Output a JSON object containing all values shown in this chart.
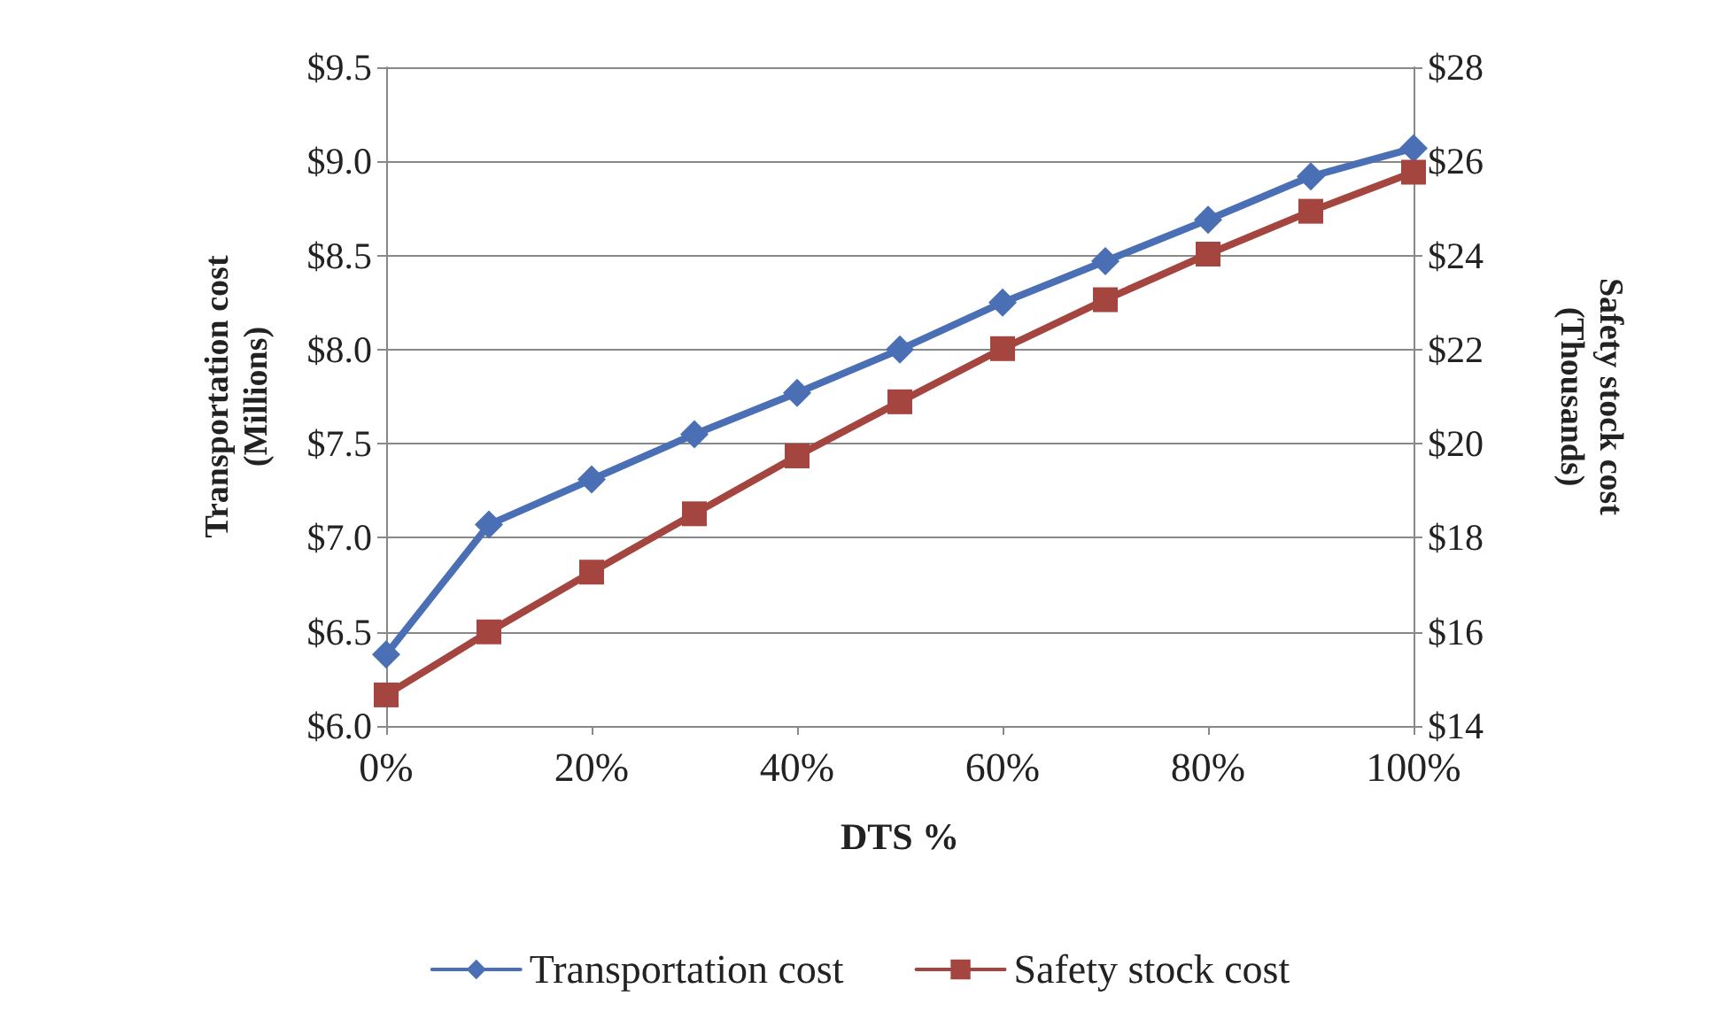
{
  "chart_data": {
    "type": "line",
    "xlabel": "DTS %",
    "ylabel": "Transportation cost\n(Millions)",
    "y2label": "Safety stock cost\n(Thousands)",
    "x": [
      0,
      10,
      20,
      30,
      40,
      50,
      60,
      70,
      80,
      90,
      100
    ],
    "series": [
      {
        "name": "Transportation cost",
        "color": "#4a6fb5",
        "marker": "diamond",
        "values": [
          6.38,
          7.07,
          7.31,
          7.55,
          7.77,
          8.0,
          8.25,
          8.47,
          8.69,
          8.92,
          9.07
        ]
      },
      {
        "name": "Safety stock cost",
        "color": "#a5453f",
        "marker": "square",
        "axis": "y2",
        "values": [
          14.66,
          16.0,
          17.27,
          18.51,
          19.74,
          20.89,
          22.02,
          23.06,
          24.03,
          24.94,
          25.77
        ]
      }
    ],
    "xlim": [
      0,
      100
    ],
    "xticks": [
      {
        "value": 0,
        "label": "0%"
      },
      {
        "value": 20,
        "label": "20%"
      },
      {
        "value": 40,
        "label": "40%"
      },
      {
        "value": 60,
        "label": "60%"
      },
      {
        "value": 80,
        "label": "80%"
      },
      {
        "value": 100,
        "label": "100%"
      }
    ],
    "ylim": [
      6,
      9.5
    ],
    "yticks": [
      {
        "value": 6,
        "label": "$6.0"
      },
      {
        "value": 6.5,
        "label": "$6.5"
      },
      {
        "value": 7,
        "label": "$7.0"
      },
      {
        "value": 7.5,
        "label": "$7.5"
      },
      {
        "value": 8,
        "label": "$8.0"
      },
      {
        "value": 8.5,
        "label": "$8.5"
      },
      {
        "value": 9,
        "label": "$9.0"
      },
      {
        "value": 9.5,
        "label": "$9.5"
      }
    ],
    "y2lim": [
      14,
      28
    ],
    "y2ticks": [
      {
        "value": 14,
        "label": "$14"
      },
      {
        "value": 16,
        "label": "$16"
      },
      {
        "value": 18,
        "label": "$18"
      },
      {
        "value": 20,
        "label": "$20"
      },
      {
        "value": 22,
        "label": "$22"
      },
      {
        "value": 24,
        "label": "$24"
      },
      {
        "value": 26,
        "label": "$26"
      },
      {
        "value": 28,
        "label": "$28"
      }
    ],
    "grid": "y",
    "legend": "bottom",
    "line_style": "solid"
  }
}
